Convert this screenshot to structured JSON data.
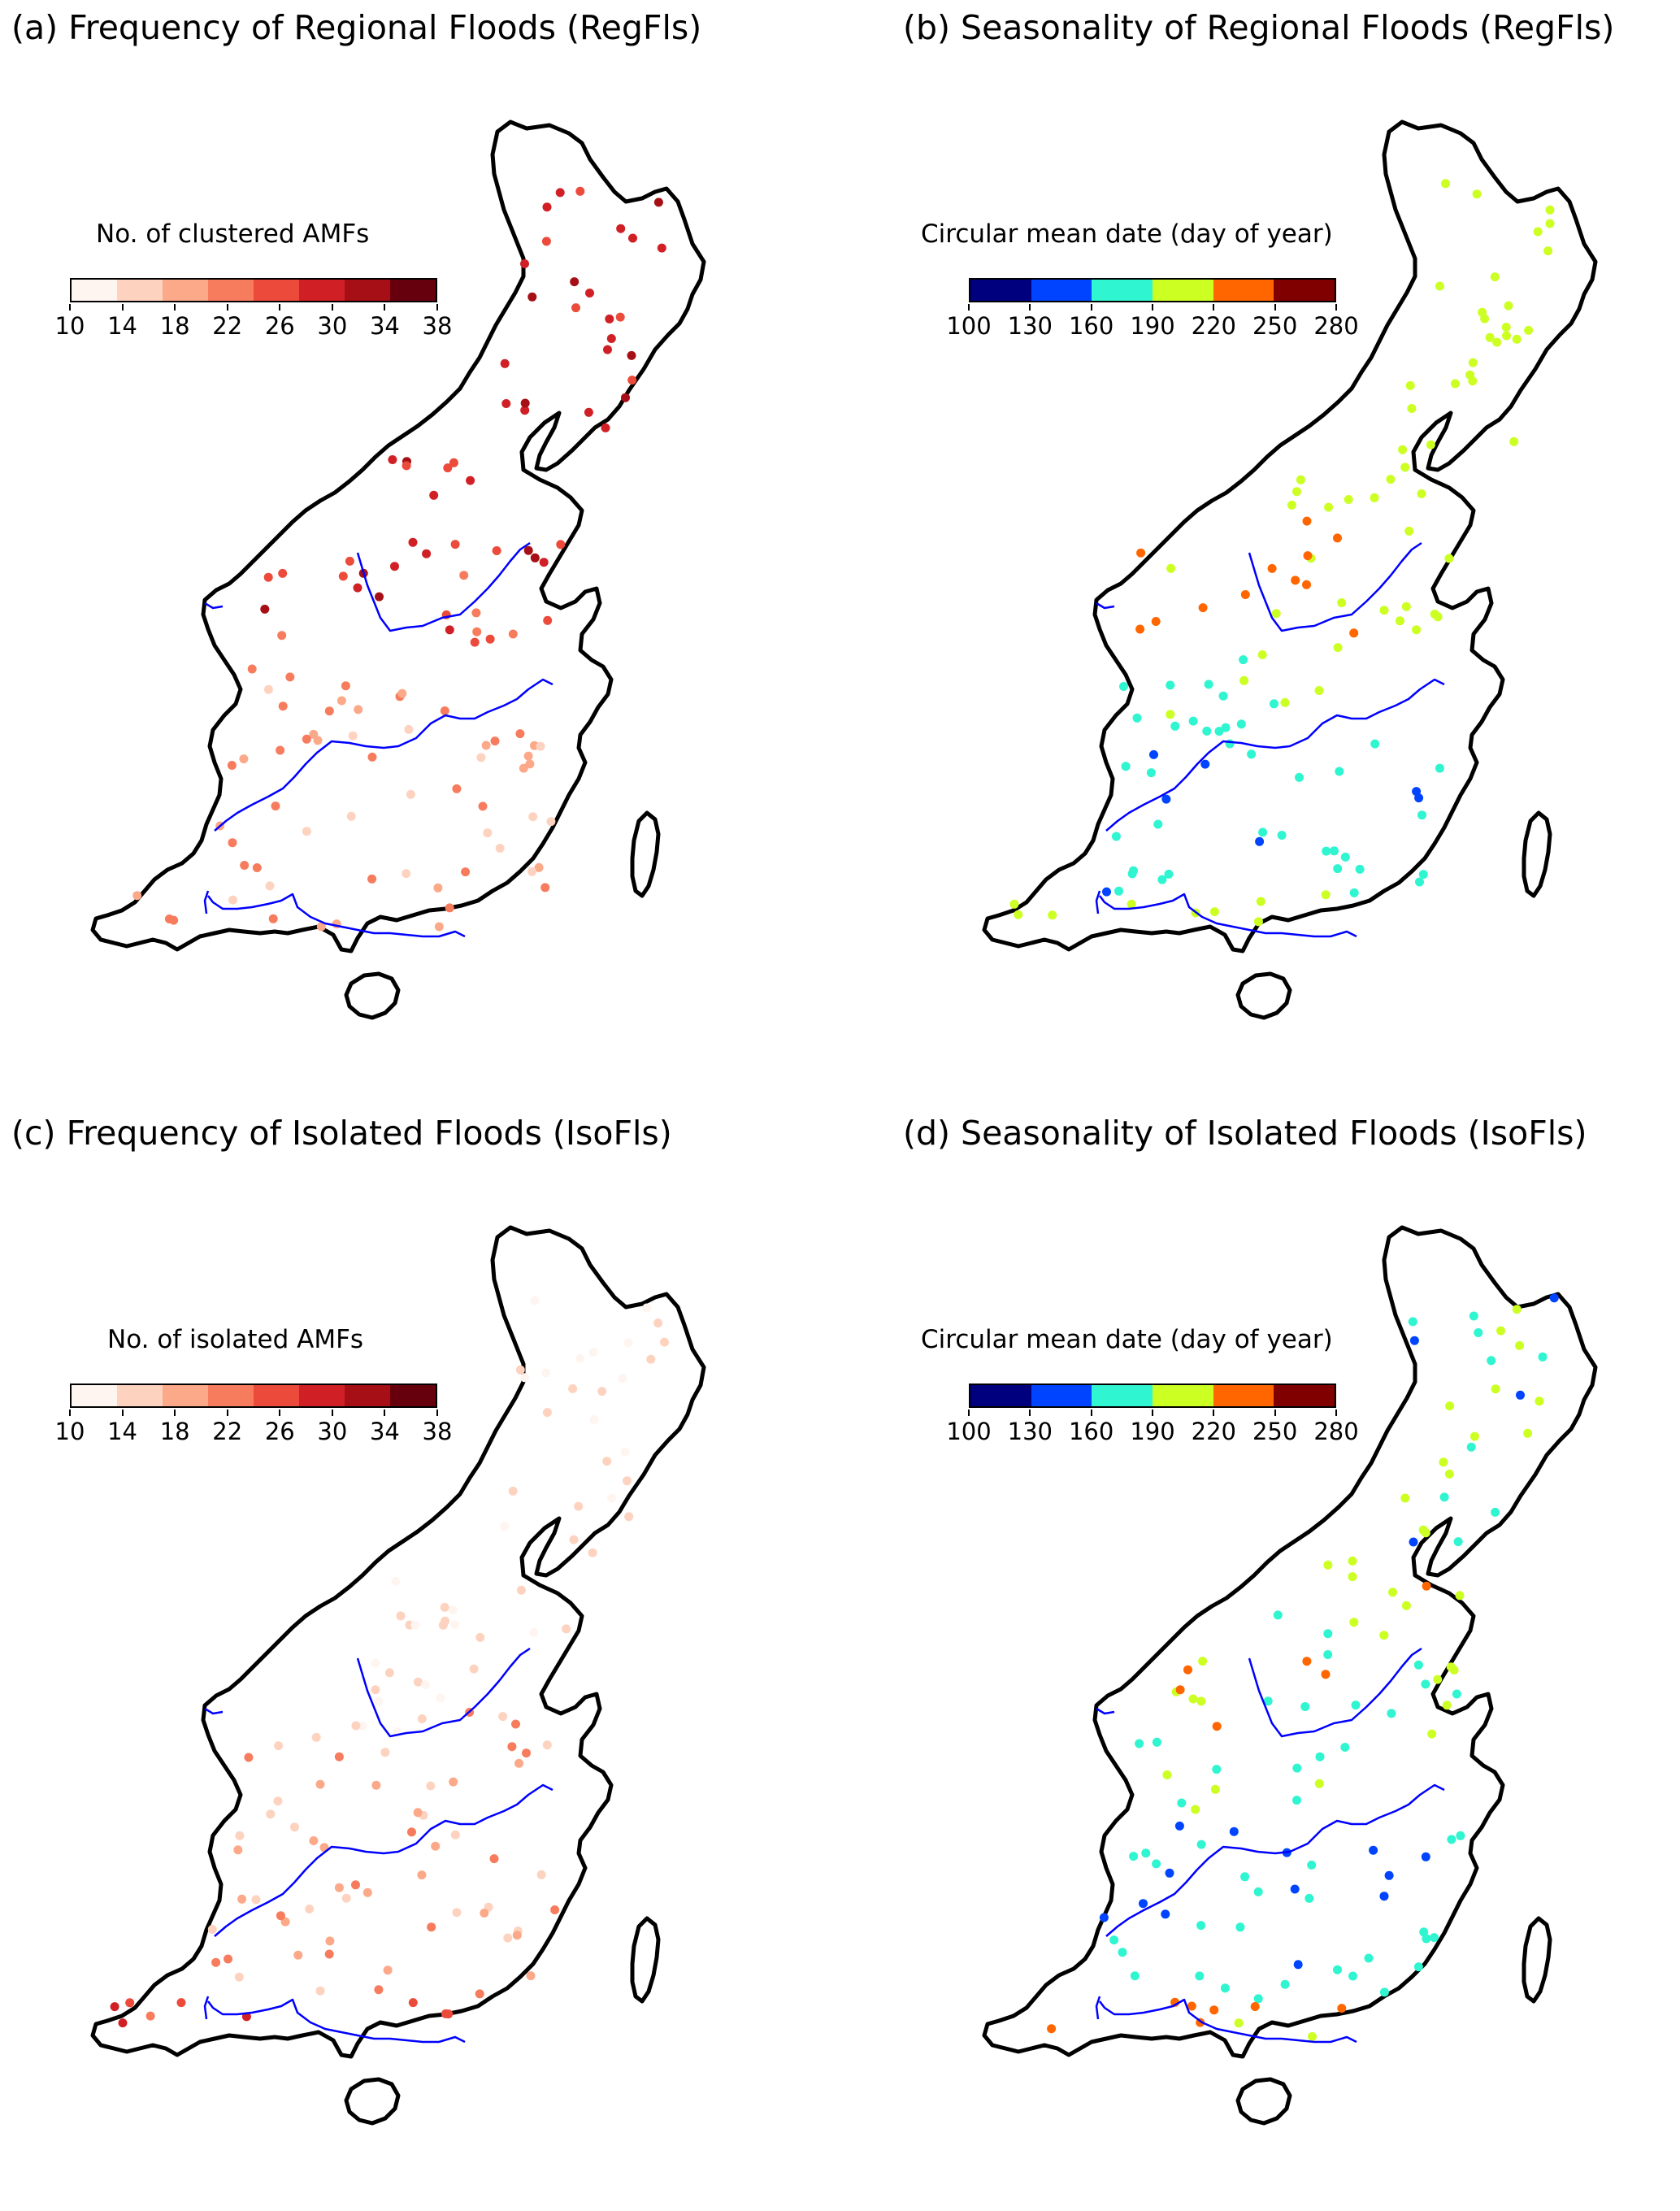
{
  "panels": [
    {
      "id": "a",
      "title": "(a) Frequency of Regional Floods (RegFls)",
      "colorbar": {
        "label": "No. of clustered AMFs",
        "ticks": [
          "10",
          "14",
          "18",
          "22",
          "26",
          "30",
          "34",
          "38"
        ],
        "colors": [
          "#fff5f0",
          "#fdd3c0",
          "#fca98a",
          "#f77c5e",
          "#ec4a3a",
          "#d02026",
          "#a50f15",
          "#67000d"
        ]
      },
      "color_scale": "reds",
      "station_pattern": "clustered_north",
      "legend_units": "count"
    },
    {
      "id": "b",
      "title": "(b) Seasonality of Regional Floods (RegFls)",
      "colorbar": {
        "label": "Circular mean date (day of year)",
        "ticks": [
          "100",
          "130",
          "160",
          "190",
          "220",
          "250",
          "280"
        ],
        "colors": [
          "#00007f",
          "#0044ff",
          "#2ff5d0",
          "#ccff22",
          "#ff6600",
          "#800000"
        ]
      },
      "color_scale": "jet",
      "station_pattern": "season_regional",
      "legend_units": "day_of_year"
    },
    {
      "id": "c",
      "title": "(c) Frequency of Isolated Floods (IsoFls)",
      "colorbar": {
        "label": "No. of isolated AMFs",
        "ticks": [
          "10",
          "14",
          "18",
          "22",
          "26",
          "30",
          "34",
          "38"
        ],
        "colors": [
          "#fff5f0",
          "#fdd3c0",
          "#fca98a",
          "#f77c5e",
          "#ec4a3a",
          "#d02026",
          "#a50f15",
          "#67000d"
        ]
      },
      "color_scale": "reds",
      "station_pattern": "isolated_south",
      "legend_units": "count"
    },
    {
      "id": "d",
      "title": "(d) Seasonality of Isolated Floods (IsoFls)",
      "colorbar": {
        "label": "Circular mean date (day of year)",
        "ticks": [
          "100",
          "130",
          "160",
          "190",
          "220",
          "250",
          "280"
        ],
        "colors": [
          "#00007f",
          "#0044ff",
          "#2ff5d0",
          "#ccff22",
          "#ff6600",
          "#800000"
        ]
      },
      "color_scale": "jet",
      "station_pattern": "season_isolated",
      "legend_units": "day_of_year"
    }
  ],
  "colors": {
    "outline": "#000000",
    "river": "#0000ff"
  }
}
